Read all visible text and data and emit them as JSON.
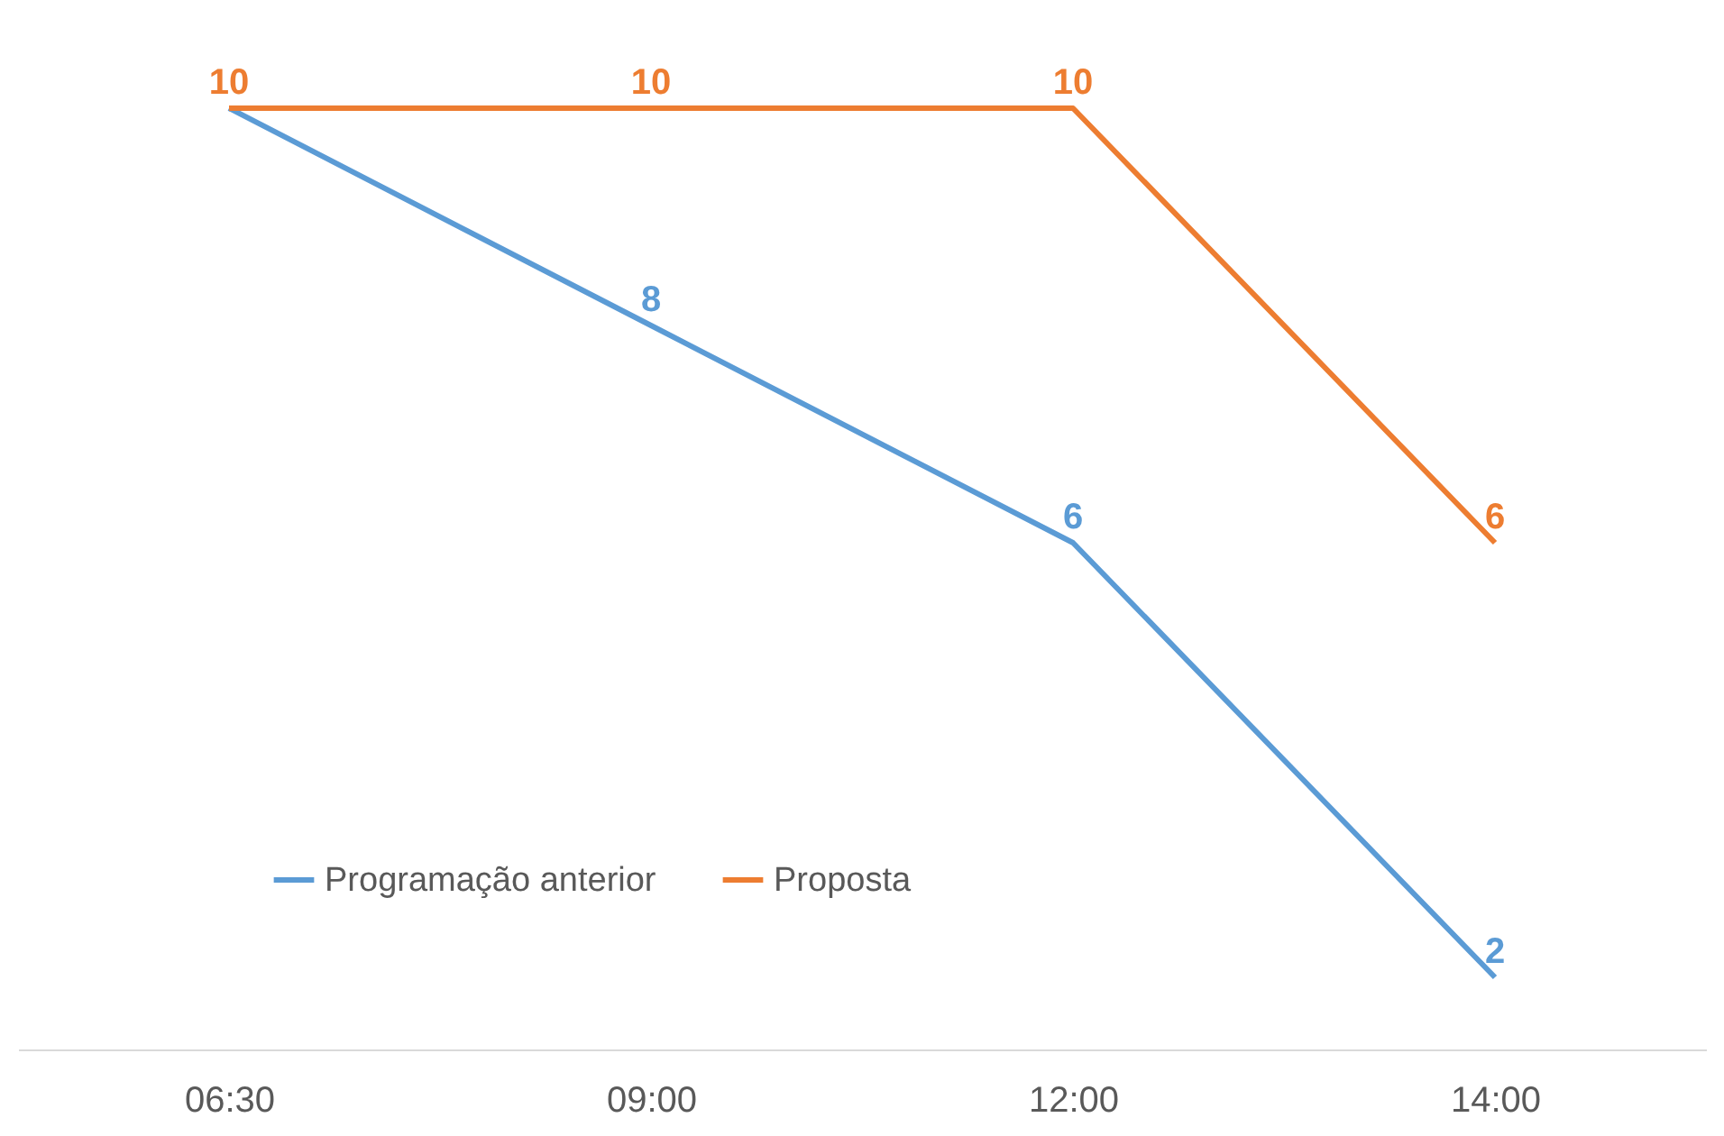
{
  "chart_data": {
    "type": "line",
    "categories": [
      "06:30",
      "09:00",
      "12:00",
      "14:00"
    ],
    "series": [
      {
        "name": "Programação anterior",
        "color": "#5b9bd5",
        "values": [
          10,
          8,
          6,
          2
        ],
        "value_labels": [
          null,
          "8",
          "6",
          "2"
        ]
      },
      {
        "name": "Proposta",
        "color": "#ed7d31",
        "values": [
          10,
          10,
          10,
          6
        ],
        "value_labels": [
          "10",
          "10",
          "10",
          "6"
        ]
      }
    ],
    "legend": "bottom left",
    "grid": false,
    "marker": "none",
    "line_style": "solid"
  }
}
